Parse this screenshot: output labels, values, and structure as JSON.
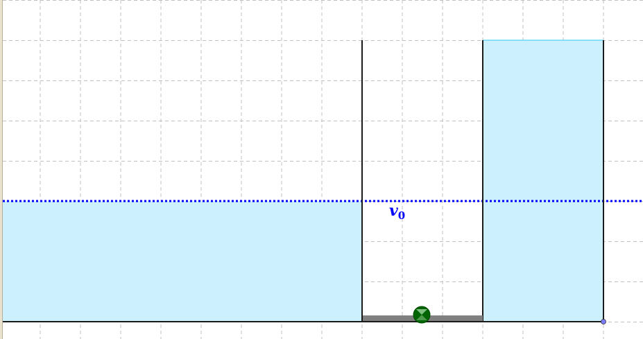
{
  "canvas": {
    "label_v0_main": "v",
    "label_v0_sub": "0",
    "colors": {
      "water": "#ccf0fe",
      "level_line": "#0000ff",
      "walls": "#1a1a1a",
      "valve_bar": "#808080",
      "valve": "#006400",
      "point": "#7b7bff",
      "grid": "#c0c0c0"
    },
    "icons": {
      "valve": "valve-handle-icon",
      "point": "point-icon"
    }
  }
}
